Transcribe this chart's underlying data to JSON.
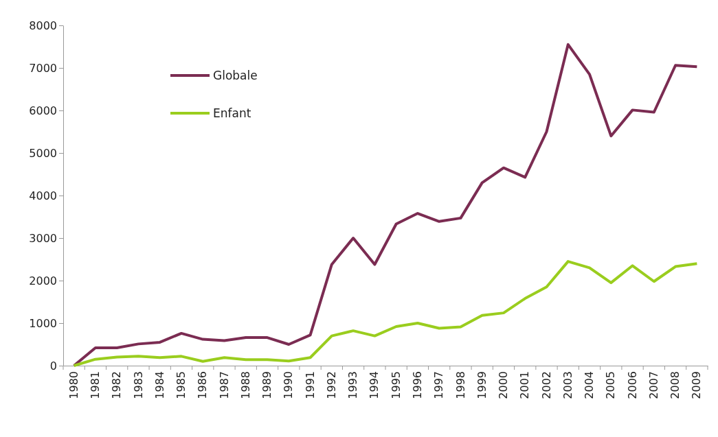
{
  "chart_data": {
    "type": "line",
    "categories": [
      "1980",
      "1981",
      "1982",
      "1983",
      "1984",
      "1985",
      "1986",
      "1987",
      "1988",
      "1989",
      "1990",
      "1991",
      "1992",
      "1993",
      "1994",
      "1995",
      "1996",
      "1997",
      "1998",
      "1999",
      "2000",
      "2001",
      "2002",
      "2003",
      "2004",
      "2005",
      "2006",
      "2007",
      "2008",
      "2009"
    ],
    "series": [
      {
        "name": "Globale",
        "color": "#7b2c52",
        "values": [
          0,
          420,
          420,
          510,
          550,
          760,
          620,
          590,
          660,
          660,
          500,
          720,
          2380,
          3000,
          2380,
          3330,
          3580,
          3390,
          3470,
          4300,
          4650,
          4430,
          5500,
          7550,
          6850,
          5400,
          6010,
          5960,
          7060,
          7030
        ]
      },
      {
        "name": "Enfant",
        "color": "#9acd1e",
        "values": [
          0,
          150,
          200,
          220,
          190,
          220,
          100,
          190,
          140,
          140,
          110,
          190,
          700,
          820,
          700,
          920,
          1000,
          880,
          910,
          1180,
          1240,
          1580,
          1850,
          2450,
          2300,
          1950,
          2350,
          1980,
          2330,
          2400
        ]
      }
    ],
    "ylim": [
      0,
      8000
    ],
    "yticks": [
      0,
      1000,
      2000,
      3000,
      4000,
      5000,
      6000,
      7000,
      8000
    ],
    "grid": false,
    "legend": "top left",
    "marker": "none",
    "line_style": "solid"
  }
}
